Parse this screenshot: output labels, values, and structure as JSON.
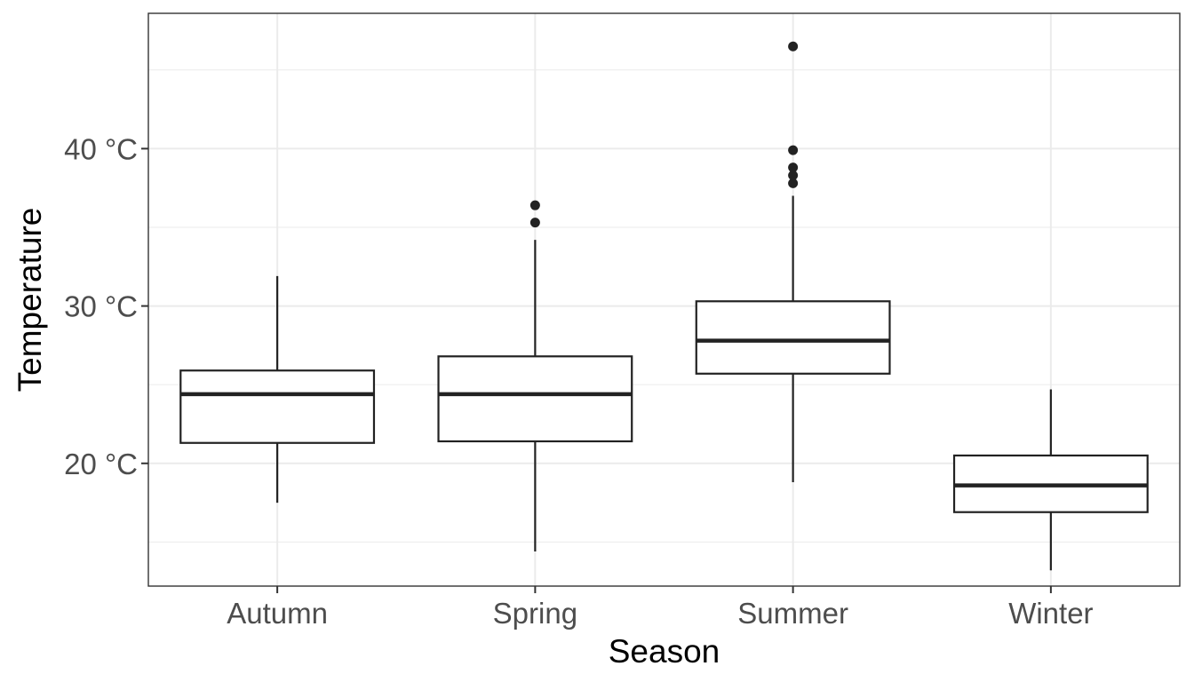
{
  "chart_data": {
    "type": "boxplot",
    "xlabel": "Season",
    "ylabel": "Temperature",
    "categories": [
      "Autumn",
      "Spring",
      "Summer",
      "Winter"
    ],
    "ylim": [
      12.2,
      48.6
    ],
    "y_ticks": [
      20,
      30,
      40
    ],
    "y_tick_labels": [
      "20 °C",
      "30 °C",
      "40 °C"
    ],
    "y_minor_ticks": [
      15,
      25,
      35,
      45
    ],
    "grid": true,
    "boxes": [
      {
        "category": "Autumn",
        "whisker_low": 17.5,
        "q1": 21.3,
        "median": 24.4,
        "q3": 25.9,
        "whisker_high": 31.9,
        "outliers": []
      },
      {
        "category": "Spring",
        "whisker_low": 14.4,
        "q1": 21.4,
        "median": 24.4,
        "q3": 26.8,
        "whisker_high": 34.2,
        "outliers": [
          35.3,
          36.4
        ]
      },
      {
        "category": "Summer",
        "whisker_low": 18.8,
        "q1": 25.7,
        "median": 27.8,
        "q3": 30.3,
        "whisker_high": 37.0,
        "outliers": [
          37.8,
          38.3,
          38.8,
          39.9,
          46.5
        ]
      },
      {
        "category": "Winter",
        "whisker_low": 13.2,
        "q1": 16.9,
        "median": 18.6,
        "q3": 20.5,
        "whisker_high": 24.7,
        "outliers": []
      }
    ]
  }
}
